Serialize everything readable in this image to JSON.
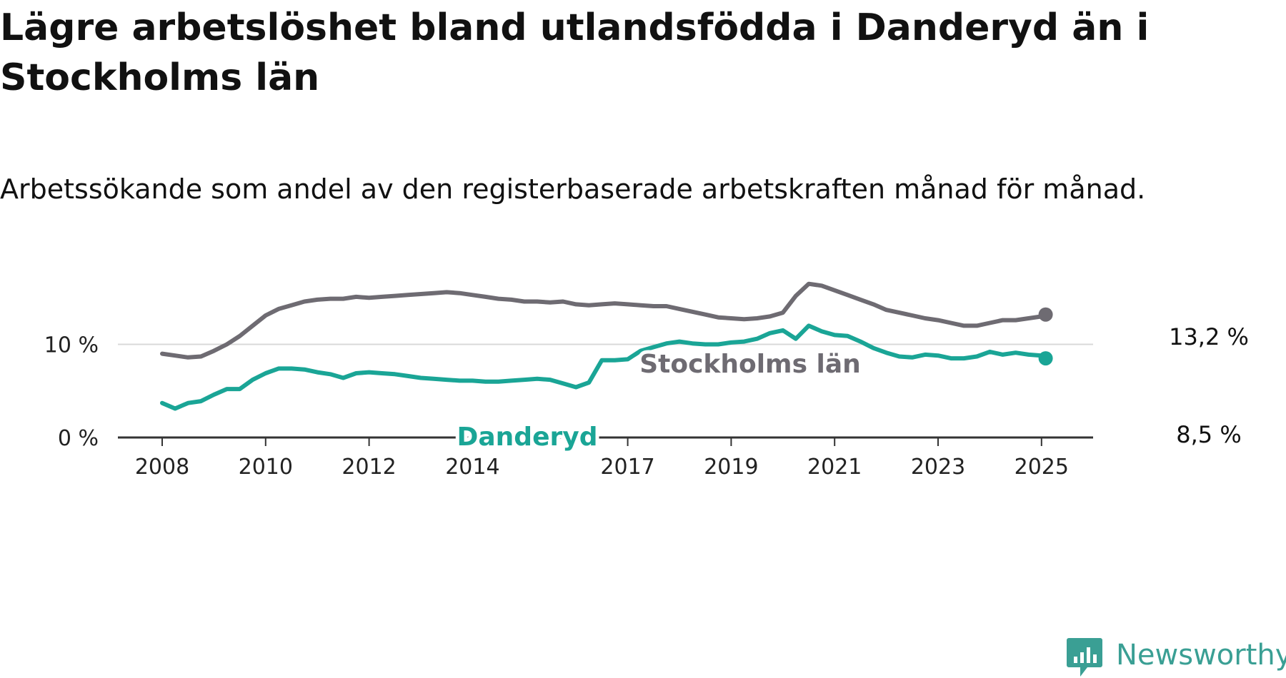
{
  "title": "Lägre arbetslöshet bland utlandsfödda i Danderyd än i Stockholms län",
  "subtitle": "Arbetssökande som andel av den registerbaserade arbetskraften månad för månad.",
  "brand": {
    "name": "Newsworthy",
    "icon": "newsworthy-logo-icon",
    "color": "#3a9f94"
  },
  "chart_data": {
    "type": "line",
    "title": "Lägre arbetslöshet bland utlandsfödda i Danderyd än i Stockholms län",
    "subtitle": "Arbetssökande som andel av den registerbaserade arbetskraften månad för månad.",
    "xlabel": "",
    "ylabel": "",
    "x_ticks": [
      "2008",
      "2010",
      "2012",
      "2014",
      "2017",
      "2019",
      "2021",
      "2023",
      "2025"
    ],
    "y_ticks": [
      "0 %",
      "10 %"
    ],
    "xlim": [
      2008.0,
      2025.95
    ],
    "ylim": [
      0,
      17
    ],
    "grid": "horizontal at 10 %",
    "legend": "direct labels on lines",
    "series": [
      {
        "name": "Stockholms län",
        "color": "#6e6b72",
        "end_label": "13,2 %",
        "x": [
          2008.0,
          2008.25,
          2008.5,
          2008.75,
          2009.0,
          2009.25,
          2009.5,
          2009.75,
          2010.0,
          2010.25,
          2010.5,
          2010.75,
          2011.0,
          2011.25,
          2011.5,
          2011.75,
          2012.0,
          2012.25,
          2012.5,
          2012.75,
          2013.0,
          2013.25,
          2013.5,
          2013.75,
          2014.0,
          2014.25,
          2014.5,
          2014.75,
          2015.0,
          2015.25,
          2015.5,
          2015.75,
          2016.0,
          2016.25,
          2016.5,
          2016.75,
          2017.0,
          2017.25,
          2017.5,
          2017.75,
          2018.0,
          2018.25,
          2018.5,
          2018.75,
          2019.0,
          2019.25,
          2019.5,
          2019.75,
          2020.0,
          2020.25,
          2020.5,
          2020.75,
          2021.0,
          2021.25,
          2021.5,
          2021.75,
          2022.0,
          2022.25,
          2022.5,
          2022.75,
          2023.0,
          2023.25,
          2023.5,
          2023.75,
          2024.0,
          2024.25,
          2024.5,
          2024.75,
          2025.0,
          2025.08
        ],
        "values": [
          9.0,
          8.8,
          8.6,
          8.7,
          9.3,
          10.0,
          10.9,
          12.0,
          13.1,
          13.8,
          14.2,
          14.6,
          14.8,
          14.9,
          14.9,
          15.1,
          15.0,
          15.1,
          15.2,
          15.3,
          15.4,
          15.5,
          15.6,
          15.5,
          15.3,
          15.1,
          14.9,
          14.8,
          14.6,
          14.6,
          14.5,
          14.6,
          14.3,
          14.2,
          14.3,
          14.4,
          14.3,
          14.2,
          14.1,
          14.1,
          13.8,
          13.5,
          13.2,
          12.9,
          12.8,
          12.7,
          12.8,
          13.0,
          13.4,
          15.2,
          16.5,
          16.3,
          15.8,
          15.3,
          14.8,
          14.3,
          13.7,
          13.4,
          13.1,
          12.8,
          12.6,
          12.3,
          12.0,
          12.0,
          12.3,
          12.6,
          12.6,
          12.8,
          13.0,
          13.2
        ]
      },
      {
        "name": "Danderyd",
        "color": "#1aa596",
        "end_label": "8,5 %",
        "x": [
          2008.0,
          2008.25,
          2008.5,
          2008.75,
          2009.0,
          2009.25,
          2009.5,
          2009.75,
          2010.0,
          2010.25,
          2010.5,
          2010.75,
          2011.0,
          2011.25,
          2011.5,
          2011.75,
          2012.0,
          2012.25,
          2012.5,
          2012.75,
          2013.0,
          2013.25,
          2013.5,
          2013.75,
          2014.0,
          2014.25,
          2014.5,
          2014.75,
          2015.0,
          2015.25,
          2015.5,
          2015.75,
          2016.0,
          2016.25,
          2016.5,
          2016.75,
          2017.0,
          2017.25,
          2017.5,
          2017.75,
          2018.0,
          2018.25,
          2018.5,
          2018.75,
          2019.0,
          2019.25,
          2019.5,
          2019.75,
          2020.0,
          2020.25,
          2020.5,
          2020.75,
          2021.0,
          2021.25,
          2021.5,
          2021.75,
          2022.0,
          2022.25,
          2022.5,
          2022.75,
          2023.0,
          2023.25,
          2023.5,
          2023.75,
          2024.0,
          2024.25,
          2024.5,
          2024.75,
          2025.0,
          2025.08
        ],
        "values": [
          3.7,
          3.1,
          3.7,
          3.9,
          4.6,
          5.2,
          5.2,
          6.2,
          6.9,
          7.4,
          7.4,
          7.3,
          7.0,
          6.8,
          6.4,
          6.9,
          7.0,
          6.9,
          6.8,
          6.6,
          6.4,
          6.3,
          6.2,
          6.1,
          6.1,
          6.0,
          6.0,
          6.1,
          6.2,
          6.3,
          6.2,
          5.8,
          5.4,
          5.9,
          8.3,
          8.3,
          8.4,
          9.3,
          9.7,
          10.1,
          10.3,
          10.1,
          10.0,
          10.0,
          10.2,
          10.3,
          10.6,
          11.2,
          11.5,
          10.6,
          12.0,
          11.4,
          11.0,
          10.9,
          10.3,
          9.6,
          9.1,
          8.7,
          8.6,
          8.9,
          8.8,
          8.5,
          8.5,
          8.7,
          9.2,
          8.9,
          9.1,
          8.9,
          8.8,
          8.5
        ]
      }
    ]
  }
}
